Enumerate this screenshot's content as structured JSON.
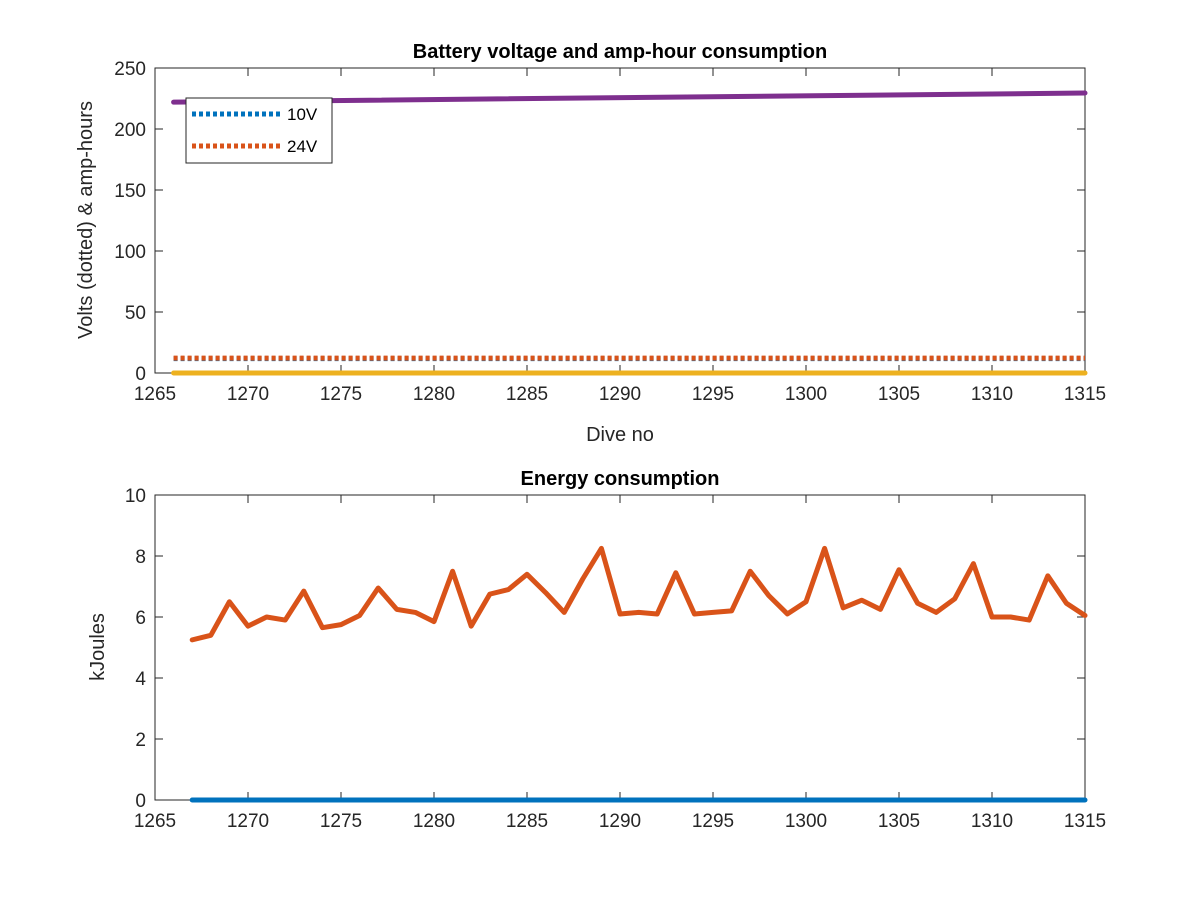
{
  "chart_data": [
    {
      "type": "line",
      "title": "Battery voltage and amp-hour consumption",
      "xlabel": "Dive no",
      "ylabel": "Volts (dotted) & amp-hours",
      "xlim": [
        1265,
        1315
      ],
      "ylim": [
        0,
        250
      ],
      "xticks": [
        "1265",
        "1270",
        "1275",
        "1280",
        "1285",
        "1290",
        "1295",
        "1300",
        "1305",
        "1310",
        "1315"
      ],
      "yticks": [
        "0",
        "50",
        "100",
        "150",
        "200",
        "250"
      ],
      "grid": false,
      "legend_position": "top-left",
      "series": [
        {
          "name": "10V",
          "color": "#0072BD",
          "style": "dotted",
          "x": [
            1266,
            1315
          ],
          "y": [
            11.8,
            11.8
          ]
        },
        {
          "name": "24V",
          "color": "#D95319",
          "style": "dotted",
          "x": [
            1266,
            1315
          ],
          "y": [
            12.2,
            12.2
          ]
        },
        {
          "color": "#EDB120",
          "style": "solid",
          "x": [
            1266,
            1315
          ],
          "y": [
            0,
            0
          ]
        },
        {
          "color": "#7E2F8E",
          "style": "solid",
          "x": [
            1266,
            1315
          ],
          "y": [
            222,
            229.5
          ]
        }
      ]
    },
    {
      "type": "line",
      "title": "Energy consumption",
      "xlabel": "",
      "ylabel": "kJoules",
      "xlim": [
        1265,
        1315
      ],
      "ylim": [
        0,
        10
      ],
      "xticks": [
        "1265",
        "1270",
        "1275",
        "1280",
        "1285",
        "1290",
        "1295",
        "1300",
        "1305",
        "1310",
        "1315"
      ],
      "yticks": [
        "0",
        "2",
        "4",
        "6",
        "8",
        "10"
      ],
      "grid": false,
      "series": [
        {
          "color": "#0072BD",
          "style": "solid",
          "x": [
            1267,
            1315
          ],
          "y": [
            0,
            0
          ]
        },
        {
          "color": "#D95319",
          "style": "solid",
          "x": [
            1267,
            1268,
            1269,
            1270,
            1271,
            1272,
            1273,
            1274,
            1275,
            1276,
            1277,
            1278,
            1279,
            1280,
            1281,
            1282,
            1283,
            1284,
            1285,
            1286,
            1287,
            1288,
            1289,
            1290,
            1291,
            1292,
            1293,
            1294,
            1295,
            1296,
            1297,
            1298,
            1299,
            1300,
            1301,
            1302,
            1303,
            1304,
            1305,
            1306,
            1307,
            1308,
            1309,
            1310,
            1311,
            1312,
            1313,
            1314,
            1315
          ],
          "y": [
            5.25,
            5.4,
            6.5,
            5.7,
            6.0,
            5.9,
            6.85,
            5.65,
            5.75,
            6.05,
            6.95,
            6.25,
            6.15,
            5.85,
            7.5,
            5.7,
            6.75,
            6.9,
            7.4,
            6.8,
            6.15,
            7.25,
            8.25,
            6.1,
            6.15,
            6.1,
            7.45,
            6.1,
            6.15,
            6.2,
            7.5,
            6.7,
            6.1,
            6.5,
            8.25,
            6.3,
            6.55,
            6.25,
            7.55,
            6.45,
            6.15,
            6.6,
            7.75,
            6.0,
            6.0,
            5.9,
            7.35,
            6.45,
            6.05
          ]
        }
      ]
    }
  ]
}
